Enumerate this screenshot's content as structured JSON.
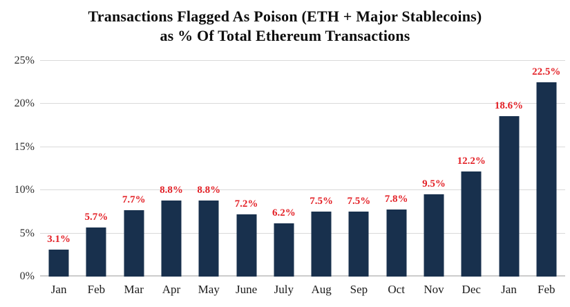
{
  "title": {
    "line1": "Transactions Flagged As Poison (ETH + Major Stablecoins)",
    "line2": "as % Of Total Ethereum Transactions"
  },
  "chart_data": {
    "type": "bar",
    "title": "Transactions Flagged As Poison (ETH + Major Stablecoins) as % Of Total Ethereum Transactions",
    "categories": [
      "Jan",
      "Feb",
      "Mar",
      "Apr",
      "May",
      "June",
      "July",
      "Aug",
      "Sep",
      "Oct",
      "Nov",
      "Dec",
      "Jan",
      "Feb"
    ],
    "values": [
      3.1,
      5.7,
      7.7,
      8.8,
      8.8,
      7.2,
      6.2,
      7.5,
      7.5,
      7.8,
      9.5,
      12.2,
      18.6,
      22.5
    ],
    "data_labels": [
      "3.1%",
      "5.7%",
      "7.7%",
      "8.8%",
      "8.8%",
      "7.2%",
      "6.2%",
      "7.5%",
      "7.5%",
      "7.8%",
      "9.5%",
      "12.2%",
      "18.6%",
      "22.5%"
    ],
    "y_ticks": [
      {
        "value": 0,
        "label": "0%"
      },
      {
        "value": 5,
        "label": "5%"
      },
      {
        "value": 10,
        "label": "10%"
      },
      {
        "value": 15,
        "label": "15%"
      },
      {
        "value": 20,
        "label": "20%"
      },
      {
        "value": 25,
        "label": "25%"
      }
    ],
    "xlabel": "",
    "ylabel": "",
    "ylim": [
      0,
      25
    ],
    "grid": true,
    "legend": "none",
    "colors": {
      "bar": "#18304d",
      "data_label": "#e32026",
      "gridline": "#d9d9d9",
      "baseline": "#cccccc",
      "axis_text": "#2e2e2e",
      "title_text": "#0d0d0d",
      "background": "#ffffff"
    }
  }
}
